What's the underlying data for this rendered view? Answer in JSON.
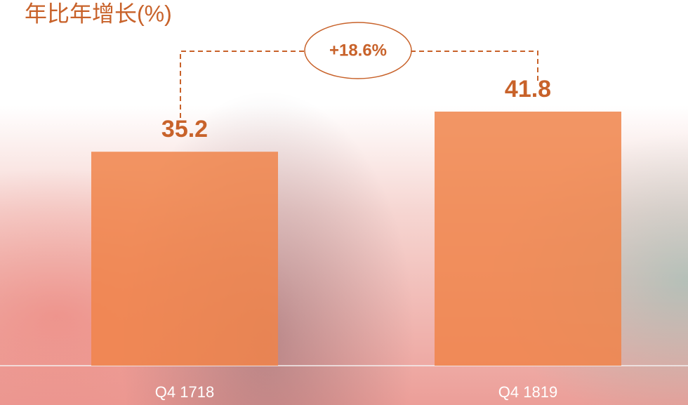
{
  "chart_data": {
    "type": "bar",
    "title": "年比年增长(%)",
    "categories": [
      "Q4 1718",
      "Q4 1819"
    ],
    "values": [
      35.2,
      41.8
    ],
    "color": "#f0844a",
    "annotation": "+18.6%"
  }
}
